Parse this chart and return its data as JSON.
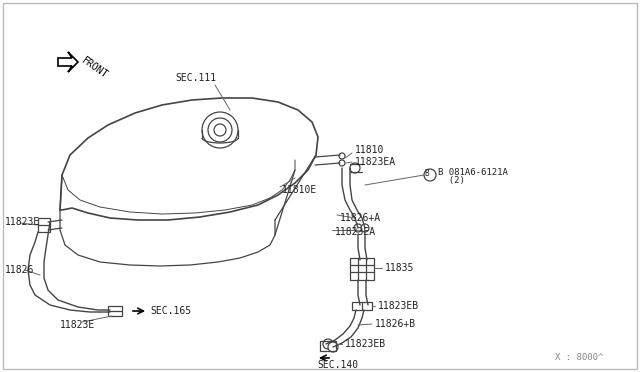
{
  "bg_color": "#ffffff",
  "line_color": "#444444",
  "text_color": "#222222",
  "border_color": "#cccccc",
  "fig_width": 6.4,
  "fig_height": 3.72,
  "labels": {
    "sec111": "SEC.111",
    "sec165": "SEC.165",
    "sec140": "SEC.140",
    "front": "FRONT",
    "p11810": "11810",
    "p11810e": "11810E",
    "p11823ea_1": "11823EA",
    "p11823ea_2": "11823EA",
    "p11826a": "11826+A",
    "p11826b": "11826+B",
    "p11826": "11826",
    "p11823e_1": "11823E",
    "p11823e_2": "11823E",
    "p11823eb_1": "11823EB",
    "p11823eb_2": "11823EB",
    "p11835": "11835",
    "p081a6_line1": "B 081A6-6121A",
    "p081a6_line2": "  (2)",
    "x8000": "X : 8000^"
  }
}
